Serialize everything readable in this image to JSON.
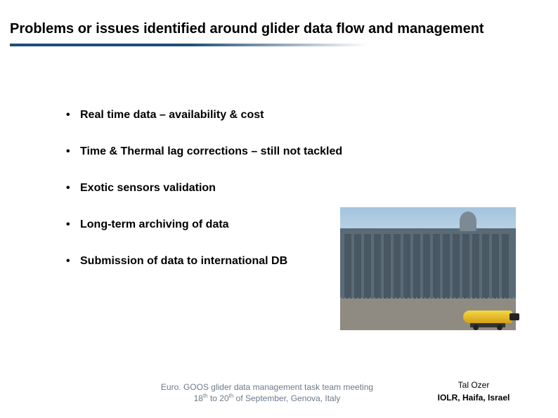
{
  "title": "Problems or issues identified around glider data flow and management",
  "underline_color": "#1f4e79",
  "bullets": [
    "Real time data – availability & cost",
    "Time & Thermal lag corrections – still not tackled",
    "Exotic sensors validation",
    "Long-term archiving of data",
    "Submission of data to international DB"
  ],
  "photo": {
    "description": "Yellow underwater glider on wheeled cart in front of multi-storey research building with observation tower",
    "sky_color_top": "#a3c4dd",
    "sky_color_bottom": "#d8e6f0",
    "building_color": "#5a6b78",
    "ground_color": "#8f8b82",
    "glider_color": "#f5d742"
  },
  "footer": {
    "line1": "Euro. GOOS glider data management task team meeting",
    "line2_pre": "18",
    "line2_sup1": "th",
    "line2_mid": " to 20",
    "line2_sup2": "th",
    "line2_post": " of September, Genova, Italy",
    "author": "Tal Ozer",
    "affiliation": "IOLR, Haifa, Israel"
  },
  "colors": {
    "text": "#000000",
    "footer_muted": "#6c7a89",
    "background": "#ffffff"
  },
  "fonts": {
    "title_size_pt": 15,
    "bullet_size_pt": 12,
    "footer_size_pt": 9
  }
}
